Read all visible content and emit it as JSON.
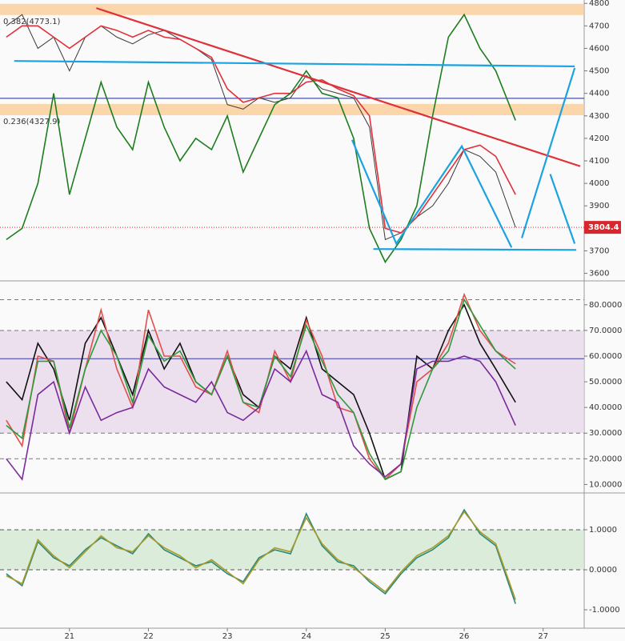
{
  "chart_data": [
    {
      "type": "line",
      "xlim": [
        20.12,
        27.52
      ],
      "ylim": [
        3570,
        4815
      ],
      "yticks": [
        3600,
        3700,
        3800,
        3900,
        4000,
        4100,
        4200,
        4300,
        4400,
        4500,
        4600,
        4700,
        4800
      ],
      "fib_levels": [
        {
          "value": 4773.1,
          "label": "0.382(4773.1)"
        },
        {
          "value": 4327.9,
          "label": "0.236(4327.9)"
        }
      ],
      "fib_color": "#f9c98f",
      "reference_lines": [
        {
          "value": 4378,
          "color": "#1c2a8c",
          "style": "solid"
        }
      ],
      "trend_lines": [
        {
          "color": "#e0303a",
          "x": [
            21.34,
            27.47
          ],
          "y": [
            4779,
            4076
          ]
        },
        {
          "color": "#1aa3e0",
          "x": [
            20.3,
            27.4
          ],
          "y": [
            4544,
            4520
          ]
        },
        {
          "color": "#1aa3e0",
          "x": [
            24.85,
            27.42
          ],
          "y": [
            3708,
            3704
          ]
        },
        {
          "color": "#1aa3e0",
          "x": [
            24.58,
            25.14,
            25.97,
            26.6
          ],
          "y": [
            4193,
            3732,
            4165,
            3715
          ]
        },
        {
          "color": "#1aa3e0",
          "x": [
            26.73,
            27.4
          ],
          "y": [
            3757,
            4513
          ]
        },
        {
          "color": "#1aa3e0",
          "x": [
            27.09,
            27.4
          ],
          "y": [
            4041,
            3732
          ]
        }
      ],
      "x": [
        20.2,
        20.4,
        20.6,
        20.8,
        21.0,
        21.2,
        21.4,
        21.6,
        21.8,
        22.0,
        22.2,
        22.4,
        22.6,
        22.8,
        23.0,
        23.2,
        23.4,
        23.6,
        23.8,
        24.0,
        24.2,
        24.4,
        24.6,
        24.8,
        25.0,
        25.2,
        25.4,
        25.6,
        25.8,
        26.0,
        26.2,
        26.4,
        26.65
      ],
      "last_label_color": "#d9262e",
      "series": [
        {
          "color": "#3a3a3a",
          "values": [
            4700,
            4750,
            4600,
            4650,
            4500,
            4650,
            4700,
            4650,
            4620,
            4660,
            4680,
            4640,
            4600,
            4550,
            4350,
            4330,
            4380,
            4360,
            4380,
            4480,
            4420,
            4400,
            4380,
            4250,
            3750,
            3780,
            3850,
            3900,
            4000,
            4150,
            4120,
            4050,
            3804.4
          ]
        },
        {
          "color": "#e0303a",
          "values": [
            4650,
            4700,
            4700,
            4650,
            4600,
            4650,
            4700,
            4680,
            4650,
            4680,
            4650,
            4640,
            4600,
            4560,
            4420,
            4360,
            4380,
            4400,
            4400,
            4450,
            4460,
            4420,
            4390,
            4300,
            3800,
            3780,
            3850,
            3950,
            4050,
            4150,
            4170,
            4120,
            3950
          ]
        },
        {
          "color": "#1e7d1e",
          "values": [
            3750,
            3800,
            4000,
            4400,
            3950,
            4200,
            4450,
            4250,
            4150,
            4450,
            4250,
            4100,
            4200,
            4150,
            4300,
            4050,
            4200,
            4350,
            4400,
            4500,
            4400,
            4380,
            4200,
            3800,
            3650,
            3750,
            3900,
            4300,
            4650,
            4750,
            4600,
            4500,
            4280
          ]
        }
      ]
    },
    {
      "type": "line",
      "xlim": [
        20.12,
        27.52
      ],
      "ylim": [
        7,
        89
      ],
      "band": [
        30,
        70
      ],
      "band_color": "#e8d9ec",
      "yticks": [
        {
          "value": 10,
          "label": "10.0000"
        },
        {
          "value": 20,
          "label": "20.0000"
        },
        {
          "value": 30,
          "label": "30.0000"
        },
        {
          "value": 40,
          "label": "40.0000"
        },
        {
          "value": 50,
          "label": "50.0000"
        },
        {
          "value": 60,
          "label": "60.0000"
        },
        {
          "value": 70,
          "label": "70.0000"
        },
        {
          "value": 80,
          "label": "80.0000"
        }
      ],
      "reference_lines": [
        {
          "value": 82,
          "color": "#777",
          "style": "dashed"
        },
        {
          "value": 70,
          "color": "#777",
          "style": "dashed"
        },
        {
          "value": 30,
          "color": "#777",
          "style": "dashed"
        },
        {
          "value": 20,
          "color": "#777",
          "style": "dashed"
        },
        {
          "value": 59,
          "color": "#3b3bb0",
          "style": "solid"
        }
      ],
      "x": [
        20.2,
        20.4,
        20.6,
        20.8,
        21.0,
        21.2,
        21.4,
        21.6,
        21.8,
        22.0,
        22.2,
        22.4,
        22.6,
        22.8,
        23.0,
        23.2,
        23.4,
        23.6,
        23.8,
        24.0,
        24.2,
        24.4,
        24.6,
        24.8,
        25.0,
        25.2,
        25.4,
        25.6,
        25.8,
        26.0,
        26.2,
        26.4,
        26.65
      ],
      "series": [
        {
          "color": "#111111",
          "values": [
            50,
            43,
            65,
            55,
            35,
            65,
            75,
            60,
            45,
            70,
            55,
            65,
            50,
            45,
            60,
            45,
            40,
            60,
            55,
            75,
            55,
            50,
            45,
            30,
            12,
            15,
            60,
            55,
            70,
            80,
            65,
            55,
            42
          ]
        },
        {
          "color": "#e0504a",
          "values": [
            35,
            25,
            60,
            58,
            30,
            55,
            78,
            55,
            40,
            78,
            60,
            60,
            48,
            45,
            62,
            42,
            38,
            62,
            50,
            74,
            60,
            40,
            38,
            20,
            12,
            18,
            50,
            55,
            65,
            84,
            70,
            62,
            57
          ]
        },
        {
          "color": "#2e9a3a",
          "values": [
            33,
            28,
            58,
            58,
            32,
            55,
            70,
            60,
            42,
            68,
            58,
            62,
            50,
            45,
            60,
            42,
            40,
            60,
            52,
            72,
            58,
            45,
            38,
            22,
            12,
            15,
            40,
            55,
            62,
            82,
            72,
            62,
            55
          ]
        },
        {
          "color": "#7a2a9a",
          "values": [
            20,
            12,
            45,
            50,
            30,
            48,
            35,
            38,
            40,
            55,
            48,
            45,
            42,
            50,
            38,
            35,
            40,
            55,
            50,
            62,
            45,
            42,
            25,
            18,
            13,
            18,
            55,
            58,
            58,
            60,
            58,
            50,
            33
          ]
        }
      ]
    },
    {
      "type": "line",
      "xlim": [
        20.12,
        27.52
      ],
      "ylim": [
        -1.46,
        1.9
      ],
      "band": [
        0,
        1
      ],
      "band_color": "#d3e8d3",
      "yticks": [
        {
          "value": -1,
          "label": "-1.0000"
        },
        {
          "value": 0,
          "label": "0.0000"
        },
        {
          "value": 1,
          "label": "1.0000"
        }
      ],
      "reference_lines": [
        {
          "value": 1,
          "color": "#555",
          "style": "dashed"
        },
        {
          "value": 0,
          "color": "#555",
          "style": "dashed"
        }
      ],
      "xticks": [
        21,
        22,
        23,
        24,
        25,
        26,
        27
      ],
      "x": [
        20.2,
        20.4,
        20.6,
        20.8,
        21.0,
        21.2,
        21.4,
        21.6,
        21.8,
        22.0,
        22.2,
        22.4,
        22.6,
        22.8,
        23.0,
        23.2,
        23.4,
        23.6,
        23.8,
        24.0,
        24.2,
        24.4,
        24.6,
        24.8,
        25.0,
        25.2,
        25.4,
        25.6,
        25.8,
        26.0,
        26.2,
        26.4,
        26.65
      ],
      "series": [
        {
          "color": "#2a8a7a",
          "values": [
            -0.1,
            -0.4,
            0.7,
            0.3,
            0.1,
            0.5,
            0.8,
            0.6,
            0.4,
            0.9,
            0.5,
            0.3,
            0.1,
            0.2,
            -0.1,
            -0.3,
            0.3,
            0.5,
            0.4,
            1.4,
            0.6,
            0.2,
            0.1,
            -0.3,
            -0.6,
            -0.1,
            0.3,
            0.5,
            0.8,
            1.5,
            0.9,
            0.6,
            -0.85
          ]
        },
        {
          "color": "#a89a2a",
          "values": [
            -0.15,
            -0.35,
            0.75,
            0.35,
            0.05,
            0.45,
            0.85,
            0.55,
            0.45,
            0.85,
            0.55,
            0.35,
            0.05,
            0.25,
            -0.05,
            -0.35,
            0.25,
            0.55,
            0.45,
            1.3,
            0.65,
            0.25,
            0.05,
            -0.25,
            -0.55,
            -0.05,
            0.35,
            0.55,
            0.85,
            1.45,
            0.95,
            0.65,
            -0.75
          ]
        }
      ]
    }
  ]
}
